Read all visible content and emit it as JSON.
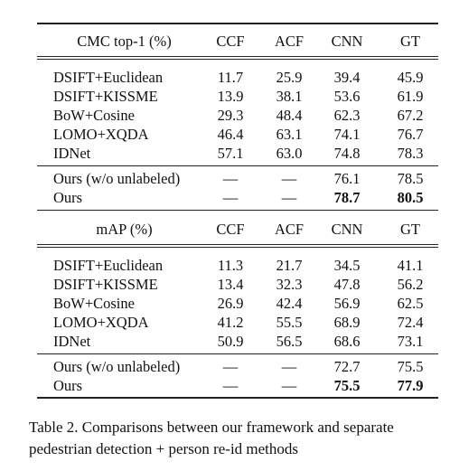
{
  "table": {
    "columns": [
      "CCF",
      "ACF",
      "CNN",
      "GT"
    ],
    "sections": [
      {
        "header": "CMC top-1 (%)",
        "groups": [
          [
            {
              "method": "DSIFT+Euclidean",
              "values": [
                "11.7",
                "25.9",
                "39.4",
                "45.9"
              ]
            },
            {
              "method": "DSIFT+KISSME",
              "values": [
                "13.9",
                "38.1",
                "53.6",
                "61.9"
              ]
            },
            {
              "method": "BoW+Cosine",
              "values": [
                "29.3",
                "48.4",
                "62.3",
                "67.2"
              ]
            },
            {
              "method": "LOMO+XQDA",
              "values": [
                "46.4",
                "63.1",
                "74.1",
                "76.7"
              ]
            },
            {
              "method": "IDNet",
              "values": [
                "57.1",
                "63.0",
                "74.8",
                "78.3"
              ]
            }
          ],
          [
            {
              "method": "Ours (w/o unlabeled)",
              "values": [
                "—",
                "—",
                "76.1",
                "78.5"
              ]
            },
            {
              "method": "Ours",
              "values": [
                "—",
                "—",
                "78.7",
                "80.5"
              ]
            }
          ]
        ]
      },
      {
        "header": "mAP (%)",
        "groups": [
          [
            {
              "method": "DSIFT+Euclidean",
              "values": [
                "11.3",
                "21.7",
                "34.5",
                "41.1"
              ]
            },
            {
              "method": "DSIFT+KISSME",
              "values": [
                "13.4",
                "32.3",
                "47.8",
                "56.2"
              ]
            },
            {
              "method": "BoW+Cosine",
              "values": [
                "26.9",
                "42.4",
                "56.9",
                "62.5"
              ]
            },
            {
              "method": "LOMO+XQDA",
              "values": [
                "41.2",
                "55.5",
                "68.9",
                "72.4"
              ]
            },
            {
              "method": "IDNet",
              "values": [
                "50.9",
                "56.5",
                "68.6",
                "73.1"
              ]
            }
          ],
          [
            {
              "method": "Ours (w/o unlabeled)",
              "values": [
                "—",
                "—",
                "72.7",
                "75.5"
              ]
            },
            {
              "method": "Ours",
              "values": [
                "—",
                "—",
                "75.5",
                "77.9"
              ]
            }
          ]
        ]
      }
    ]
  },
  "caption": {
    "line1": "Table 2. Comparisons between our framework and separate",
    "line2": "pedestrian detection + person re-id methods"
  }
}
